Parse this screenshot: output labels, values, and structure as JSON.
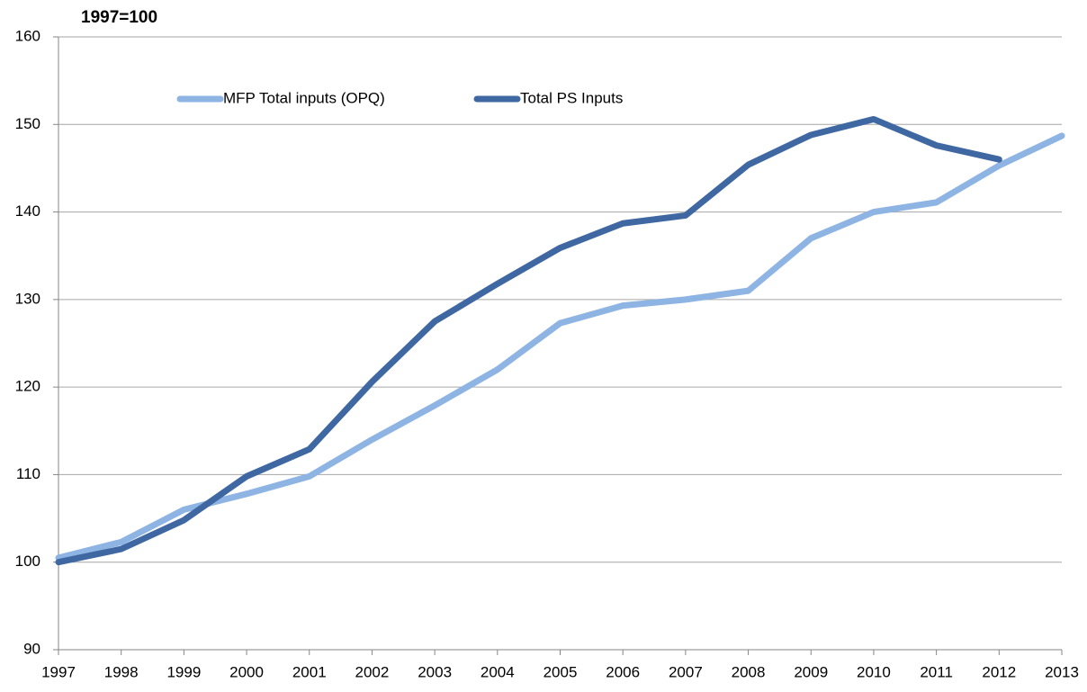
{
  "chart_data": {
    "type": "line",
    "title": "1997=100",
    "categories": [
      "1997",
      "1998",
      "1999",
      "2000",
      "2001",
      "2002",
      "2003",
      "2004",
      "2005",
      "2006",
      "2007",
      "2008",
      "2009",
      "2010",
      "2011",
      "2012",
      "2013"
    ],
    "series": [
      {
        "name": "MFP Total inputs (OPQ)",
        "color": "#8eb4e3",
        "values": [
          100.5,
          102.3,
          106,
          107.8,
          109.8,
          114,
          117.9,
          122,
          127.3,
          129.3,
          130,
          131,
          137,
          140,
          141.1,
          145.3,
          148.7
        ]
      },
      {
        "name": "Total PS Inputs",
        "color": "#3f68a3",
        "values": [
          100,
          101.5,
          104.8,
          109.8,
          112.9,
          120.6,
          127.5,
          131.8,
          135.9,
          138.7,
          139.6,
          145.4,
          148.8,
          150.6,
          147.6,
          146,
          null
        ]
      }
    ],
    "ylim": [
      90,
      160
    ],
    "yticks": [
      90,
      100,
      110,
      120,
      130,
      140,
      150,
      160
    ],
    "grid": true,
    "legend": "top"
  }
}
